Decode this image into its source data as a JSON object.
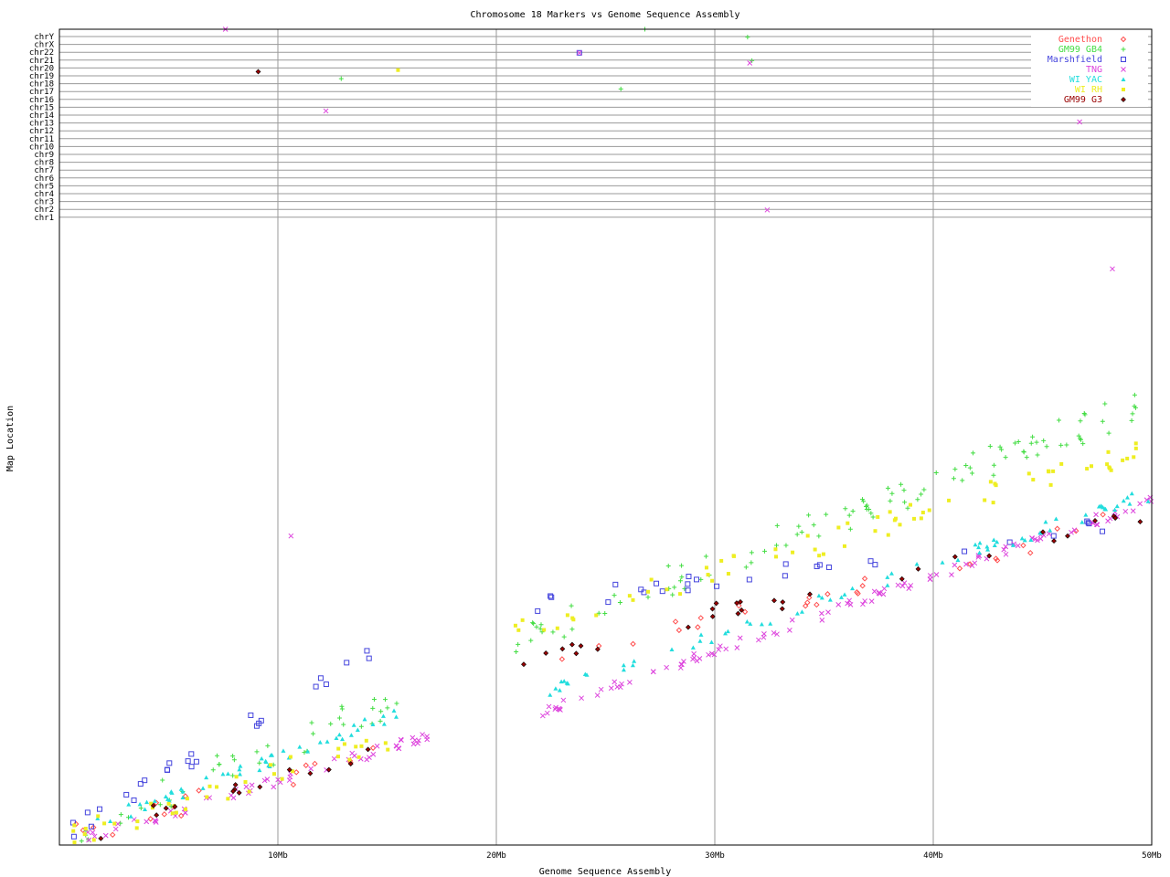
{
  "chart_data": {
    "type": "scatter",
    "title": "Chromosome 18 Markers vs Genome Sequence Assembly",
    "xlabel": "Genome Sequence Assembly",
    "ylabel": "Map Location",
    "xlim": [
      0,
      50
    ],
    "x_unit": "Mb",
    "x_ticks": [
      "10Mb",
      "20Mb",
      "30Mb",
      "40Mb",
      "50Mb"
    ],
    "y_ticks": [
      "chrY",
      "chrX",
      "chr22",
      "chr21",
      "chr20",
      "chr19",
      "chr18",
      "chr17",
      "chr16",
      "chr15",
      "chr14",
      "chr13",
      "chr12",
      "chr11",
      "chr10",
      "chr9",
      "chr8",
      "chr7",
      "chr6",
      "chr5",
      "chr4",
      "chr3",
      "chr2",
      "chr1"
    ],
    "grid": true,
    "legend_position": "top-right",
    "series": [
      {
        "name": "Genethon",
        "color": "#ff4d4d",
        "marker": "diamond"
      },
      {
        "name": "GM99 GB4",
        "color": "#44dd44",
        "marker": "plus"
      },
      {
        "name": "Marshfield",
        "color": "#4444dd",
        "marker": "square"
      },
      {
        "name": "TNG",
        "color": "#dd44dd",
        "marker": "x"
      },
      {
        "name": "WI YAC",
        "color": "#22dddd",
        "marker": "triangle"
      },
      {
        "name": "WI RH",
        "color": "#eeee22",
        "marker": "dot"
      },
      {
        "name": "GM99 G3",
        "color": "#990000",
        "marker": "diamond-filled"
      }
    ]
  }
}
